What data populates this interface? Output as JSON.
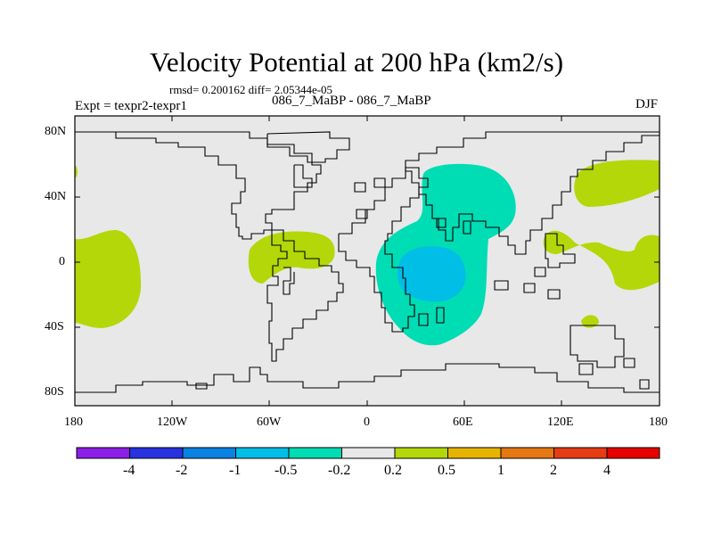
{
  "map": {
    "title": "Velocity Potential at 200 hPa (km2/s)",
    "stats": "rmsd= 0.200162 diff= 2.05344e-05",
    "experiment": "Expt = texpr2-texpr1",
    "runs": "086_7_MaBP - 086_7_MaBP",
    "season": "DJF",
    "projection": "cylindrical equidistant",
    "lat_labels": [
      "80N",
      "40N",
      "0",
      "40S",
      "80S"
    ],
    "lon_labels": [
      "180",
      "120W",
      "60W",
      "0",
      "60E",
      "120E",
      "180"
    ],
    "colors": {
      "background_field": "#e8e8e8",
      "coastline": "#000000",
      "positive_0_2_to_0_5": "#b4d70a",
      "negative_0_5_to_0_2": "#00dcb4",
      "negative_1_to_0_5": "#00bee6"
    }
  },
  "colorbar": {
    "labels": [
      "-4",
      "-2",
      "-1",
      "-0.5",
      "-0.2",
      "0.2",
      "0.5",
      "1",
      "2",
      "4"
    ],
    "colors": [
      "#8c1ee6",
      "#2832e1",
      "#0a82e1",
      "#00bee6",
      "#00dcb4",
      "#e8e8e8",
      "#b4d70a",
      "#e6b400",
      "#e67814",
      "#e63c14",
      "#e60000"
    ]
  }
}
